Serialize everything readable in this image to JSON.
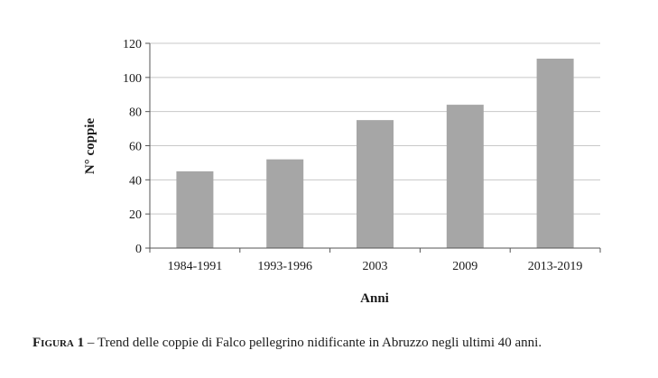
{
  "chart_data": {
    "type": "bar",
    "categories": [
      "1984-1991",
      "1993-1996",
      "2003",
      "2009",
      "2013-2019"
    ],
    "values": [
      45,
      52,
      75,
      84,
      111
    ],
    "xlabel": "Anni",
    "ylabel": "N° coppie",
    "ylim": [
      0,
      120
    ],
    "yticks": [
      0,
      20,
      40,
      60,
      80,
      100,
      120
    ],
    "grid": true,
    "bar_color": "#a6a6a6",
    "grid_color": "#c8c8c8"
  },
  "caption": {
    "label": "Figura 1",
    "text": " – Trend delle coppie di Falco pellegrino nidificante in Abruzzo negli ultimi 40 anni."
  }
}
